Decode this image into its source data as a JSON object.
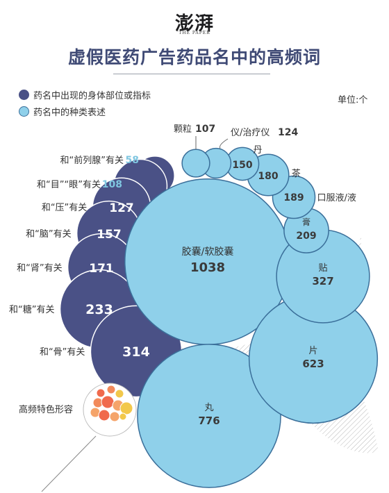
{
  "header": {
    "logo_text": "澎湃",
    "logo_sub": "THE PAPER",
    "title": "虚假医药广告药品名中的高频词"
  },
  "legend": {
    "body_label": "药名中出现的身体部位或指标",
    "type_label": "药名中的种类表述"
  },
  "unit": "单位:个",
  "colors": {
    "dark_circle": "#4a5186",
    "light_circle": "#8fd0ea",
    "light_circle_border": "#3b6f9a",
    "type_value_text": "#7fc6e0",
    "orange_small": [
      "#f06a4d",
      "#f28a5b",
      "#f5a46a",
      "#f2c84b"
    ]
  },
  "chart_data": {
    "type": "bubble",
    "series": [
      {
        "name": "药名中出现的身体部位或指标",
        "items": [
          {
            "label": "和“前列腺”有关",
            "value": 58
          },
          {
            "label": "和“目”“眼”有关",
            "value": 108
          },
          {
            "label": "和“压”有关",
            "value": 127
          },
          {
            "label": "和“脑”有关",
            "value": 157
          },
          {
            "label": "和“肾”有关",
            "value": 171
          },
          {
            "label": "和“糖”有关",
            "value": 233
          },
          {
            "label": "和“骨”有关",
            "value": 314
          }
        ]
      },
      {
        "name": "药名中的种类表述",
        "items": [
          {
            "label": "胶囊/软胶囊",
            "value": 1038
          },
          {
            "label": "丸",
            "value": 776
          },
          {
            "label": "片",
            "value": 623
          },
          {
            "label": "贴",
            "value": 327
          },
          {
            "label": "膏",
            "value": 209
          },
          {
            "label": "口服液/液",
            "value": 189
          },
          {
            "label": "茶",
            "value": 180
          },
          {
            "label": "丹",
            "value": 150
          },
          {
            "label": "仪/治疗仪",
            "value": 124
          },
          {
            "label": "颗粒",
            "value": 107
          }
        ]
      }
    ],
    "callout_label": "高频特色形容"
  }
}
